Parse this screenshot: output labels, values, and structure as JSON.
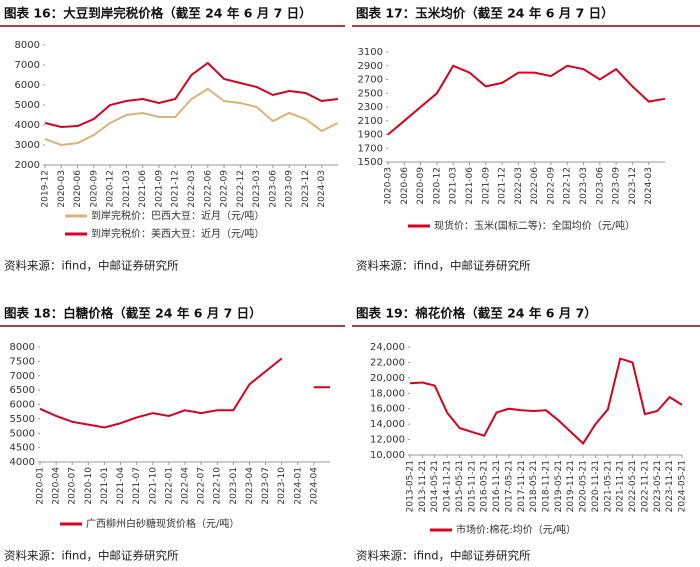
{
  "chart_data": [
    {
      "type": "line",
      "title": "图表 16：大豆到岸完税价格（截至 24 年 6 月 7 日）",
      "source": "资料来源：ifind，中邮证券研究所",
      "categories": [
        "2019-12",
        "2020-03",
        "2020-06",
        "2020-09",
        "2020-12",
        "2021-03",
        "2021-06",
        "2021-09",
        "2021-12",
        "2022-03",
        "2022-06",
        "2022-09",
        "2022-12",
        "2023-03",
        "2023-06",
        "2023-09",
        "2023-12",
        "2024-03",
        null
      ],
      "series": [
        {
          "name": "到岸完税价：巴西大豆：近月（元/吨）",
          "color": "#d9b27c",
          "values": [
            3300,
            3000,
            3100,
            3500,
            4100,
            4500,
            4600,
            4400,
            4400,
            5300,
            5800,
            5200,
            5100,
            4900,
            4200,
            4600,
            4300,
            3700,
            4100
          ]
        },
        {
          "name": "到岸完税价：美西大豆：近月（元/吨）",
          "color": "#d7001f",
          "values": [
            4100,
            3900,
            3950,
            4300,
            5000,
            5200,
            5300,
            5100,
            5300,
            6500,
            7100,
            6300,
            6100,
            5900,
            5500,
            5700,
            5600,
            5200,
            5300
          ]
        }
      ],
      "ylim": [
        2000,
        8000
      ],
      "yticks": [
        2000,
        3000,
        4000,
        5000,
        6000,
        7000,
        8000
      ]
    },
    {
      "type": "line",
      "title": "图表 17：玉米均价（截至 24 年 6 月 7 日）",
      "source": "资料来源：ifind，中邮证券研究所",
      "categories": [
        "2020-03",
        "2020-06",
        "2020-09",
        "2020-12",
        "2021-03",
        "2021-06",
        "2021-09",
        "2021-12",
        "2022-03",
        "2022-06",
        "2022-09",
        "2022-12",
        "2023-03",
        "2023-06",
        "2023-09",
        "2023-12",
        "2024-03",
        null
      ],
      "series": [
        {
          "name": "现货价：玉米(国标二等)：全国均价（元/吨）",
          "color": "#d7001f",
          "values": [
            1900,
            2100,
            2300,
            2500,
            2900,
            2800,
            2600,
            2650,
            2800,
            2800,
            2750,
            2900,
            2850,
            2700,
            2850,
            2600,
            2380,
            2420
          ]
        }
      ],
      "ylim": [
        1500,
        3100
      ],
      "yticks": [
        1500,
        1700,
        1900,
        2100,
        2300,
        2500,
        2700,
        2900,
        3100
      ]
    },
    {
      "type": "line",
      "title": "图表 18：白糖价格（截至 24 年 6 月 7 日）",
      "source": "资料来源：ifind，中邮证券研究所",
      "categories": [
        "2020-01",
        "2020-04",
        "2020-07",
        "2020-10",
        "2021-01",
        "2021-04",
        "2021-07",
        "2021-10",
        "2022-01",
        "2022-04",
        "2022-07",
        "2022-10",
        "2023-01",
        "2023-04",
        "2023-07",
        "2023-10",
        "2024-01",
        "2024-04",
        null
      ],
      "series": [
        {
          "name": "广西柳州白砂糖现货价格（元/吨）",
          "color": "#d7001f",
          "values": [
            5850,
            5600,
            5400,
            5300,
            5200,
            5350,
            5550,
            5700,
            5600,
            5800,
            5700,
            5800,
            5800,
            6700,
            7150,
            7600,
            null,
            6600,
            6600
          ]
        }
      ],
      "ylim": [
        4000,
        8000
      ],
      "yticks": [
        4000,
        4500,
        5000,
        5500,
        6000,
        6500,
        7000,
        7500,
        8000
      ]
    },
    {
      "type": "line",
      "title": "图表 19：棉花价格（截至 24 年 6 月 7）",
      "source": "资料来源：ifind，中邮证券研究所",
      "categories": [
        "2013-05-21",
        "2013-11-21",
        "2014-05-21",
        "2014-11-21",
        "2015-05-21",
        "2015-11-21",
        "2016-05-21",
        "2016-11-21",
        "2017-05-21",
        "2017-11-21",
        "2018-05-21",
        "2018-11-21",
        "2019-05-21",
        "2019-11-21",
        "2020-05-21",
        "2020-11-21",
        "2021-05-21",
        "2021-11-21",
        "2022-05-21",
        "2022-11-21",
        "2023-05-21",
        "2023-11-21",
        "2024-05-21"
      ],
      "series": [
        {
          "name": "市场价:棉花:均价（元/吨）",
          "color": "#d7001f",
          "values": [
            19300,
            19400,
            19000,
            15500,
            13500,
            13000,
            12500,
            15500,
            16000,
            15800,
            15700,
            15800,
            14500,
            13000,
            11500,
            14000,
            15900,
            22500,
            22000,
            15300,
            15700,
            17500,
            16500
          ]
        }
      ],
      "ylim": [
        10000,
        24000
      ],
      "yticks": [
        {
          "value": 10000,
          "label": "10,000"
        },
        {
          "value": 12000,
          "label": "12,000"
        },
        {
          "value": 14000,
          "label": "14,000"
        },
        {
          "value": 16000,
          "label": "16,000"
        },
        {
          "value": 18000,
          "label": "18,000"
        },
        {
          "value": 20000,
          "label": "20,000"
        },
        {
          "value": 22000,
          "label": "22,000"
        },
        {
          "value": 24000,
          "label": "24,000"
        }
      ]
    }
  ]
}
